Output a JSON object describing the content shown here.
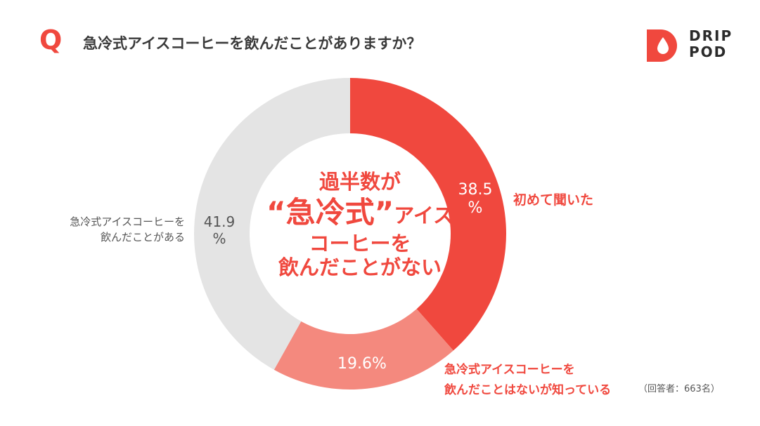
{
  "colors": {
    "accent": "#f0483e",
    "first_heard": "#f0483e",
    "know_not_drunk": "#f4897e",
    "have_drunk": "#e4e4e4",
    "gray_text": "#555555",
    "dark_text": "#333333"
  },
  "header": {
    "q_mark": "Q",
    "question": "急冷式アイスコーヒーを飲んだことがありますか？"
  },
  "logo": {
    "line1": "DRIP",
    "line2": "POD",
    "mark_icon": "droplet-icon"
  },
  "center": {
    "line1": "過半数が",
    "quote_open": "“",
    "emphasis": "急冷式",
    "quote_close": "”",
    "line2_suffix": "アイス",
    "line3": "コーヒーを",
    "line4": "飲んだことがない"
  },
  "chart_data": {
    "type": "pie",
    "donut": true,
    "start": "12 o'clock",
    "direction": "clockwise",
    "categories": [
      "初めて聞いた",
      "急冷式アイスコーヒーを飲んだことはないが知っている",
      "急冷式アイスコーヒーを飲んだことがある"
    ],
    "values": [
      38.5,
      19.6,
      41.9
    ],
    "unit": "%",
    "labels": [
      {
        "value_text": "38.5",
        "unit_text": "%",
        "category_lines": [
          "初めて聞いた"
        ]
      },
      {
        "value_text": "19.6%",
        "category_lines": [
          "急冷式アイスコーヒーを",
          "飲んだことはないが知っている"
        ]
      },
      {
        "value_text": "41.9",
        "unit_text": "%",
        "category_lines": [
          "急冷式アイスコーヒーを",
          "飲んだことがある"
        ]
      }
    ]
  },
  "note": {
    "respondents": "（回答者：663名）"
  }
}
